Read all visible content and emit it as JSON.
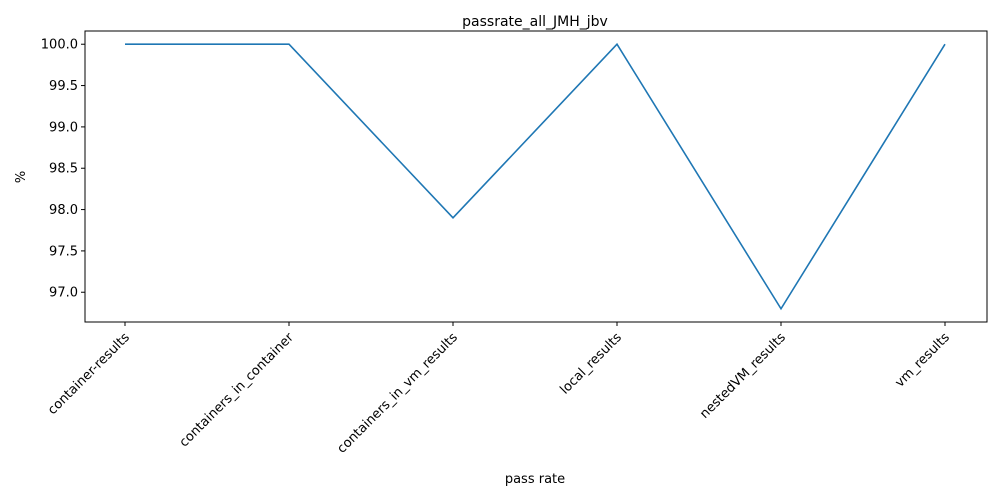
{
  "chart_data": {
    "type": "line",
    "title": "passrate_all_JMH_jbv",
    "xlabel": "pass rate",
    "ylabel": "%",
    "categories": [
      "container-results",
      "containers_in_container",
      "containers_in_vm_results",
      "local_results",
      "nestedVM_results",
      "vm_results"
    ],
    "values": [
      100.0,
      100.0,
      97.9,
      100.0,
      96.8,
      100.0
    ],
    "ylim": [
      96.64,
      100.16
    ],
    "yticks": [
      97.0,
      97.5,
      98.0,
      98.5,
      99.0,
      99.5,
      100.0
    ],
    "ytick_labels": [
      "97.0",
      "97.5",
      "98.0",
      "98.5",
      "99.0",
      "99.5",
      "100.0"
    ],
    "grid": false,
    "line_color": "#1f77b4"
  }
}
